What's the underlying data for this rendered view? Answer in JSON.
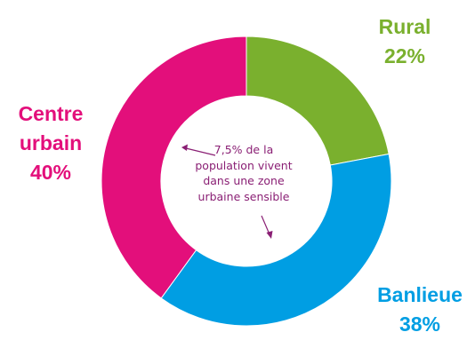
{
  "chart_data": {
    "type": "pie",
    "donut": true,
    "categories": [
      "Rural",
      "Banlieue",
      "Centre urbain"
    ],
    "values": [
      22,
      38,
      40
    ],
    "value_labels": [
      "22%",
      "38%",
      "40%"
    ],
    "colors": [
      "#7ab02e",
      "#009ee3",
      "#e30f7b"
    ],
    "start": "top, clockwise"
  },
  "labels": {
    "rural": {
      "name": "Rural",
      "pct": "22%"
    },
    "banlieue": {
      "name": "Banlieue",
      "pct": "38%"
    },
    "centre": {
      "line1": "Centre",
      "line2": "urbain",
      "pct": "40%"
    }
  },
  "annotation": {
    "text": "7,5% de la population vivent dans une zone urbaine sensible",
    "color": "#8a1f74"
  }
}
